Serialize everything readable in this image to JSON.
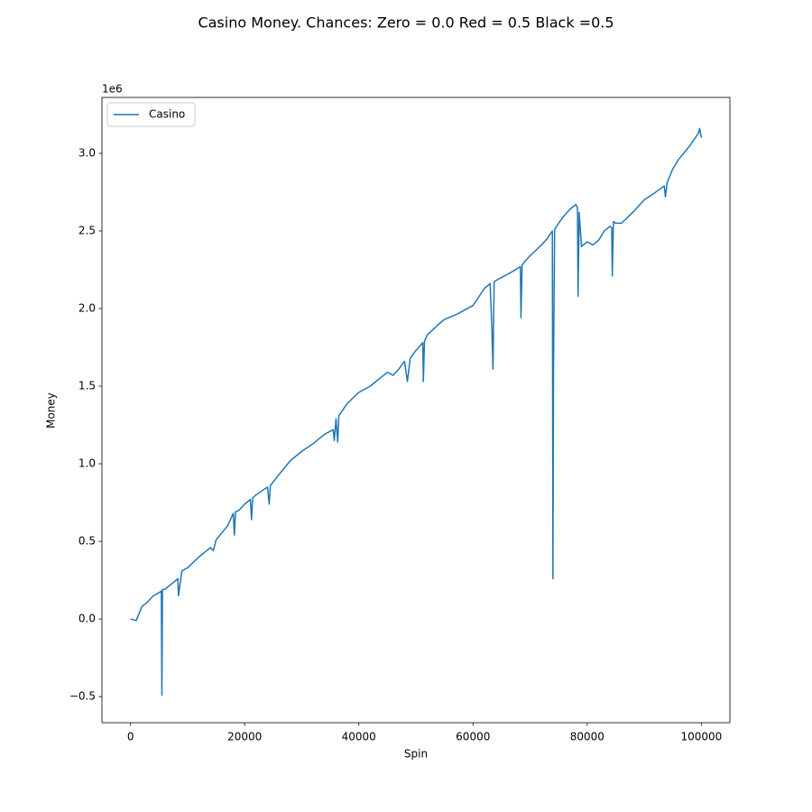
{
  "chart_data": {
    "type": "line",
    "title": "Casino Money. Chances: Zero = 0.0  Red = 0.5  Black =0.5",
    "x_label": "Spin",
    "y_label": "Money",
    "y_offset_label": "1e6",
    "x": [
      0,
      1000,
      2000,
      3000,
      4000,
      5000,
      5400,
      5500,
      5600,
      6000,
      7000,
      8000,
      8300,
      8400,
      9000,
      10000,
      12000,
      14000,
      14500,
      15000,
      17000,
      18000,
      18200,
      18400,
      19000,
      20000,
      21000,
      21200,
      21400,
      22000,
      24000,
      24300,
      24500,
      26000,
      28000,
      30000,
      32000,
      34000,
      35500,
      35700,
      36000,
      36300,
      36500,
      38000,
      40000,
      42000,
      44000,
      45000,
      46000,
      47000,
      48000,
      48500,
      49000,
      50000,
      51200,
      51300,
      51500,
      52000,
      54000,
      55000,
      57000,
      58000,
      60000,
      62000,
      63000,
      63300,
      63500,
      63700,
      64000,
      65000,
      66000,
      67000,
      68300,
      68400,
      68600,
      69000,
      70000,
      72000,
      73000,
      73900,
      74000,
      74100,
      74300,
      75000,
      76000,
      77000,
      78000,
      78300,
      78400,
      78600,
      79000,
      80000,
      81000,
      82000,
      83000,
      84000,
      84300,
      84400,
      84600,
      85000,
      86000,
      88000,
      90000,
      92000,
      93500,
      93700,
      94000,
      95000,
      96000,
      98000,
      99500,
      99700,
      100000
    ],
    "series": [
      {
        "name": "Casino",
        "color": "#1f77b4",
        "values": [
          0,
          -10000,
          80000,
          110000,
          150000,
          170000,
          180000,
          -490000,
          190000,
          190000,
          220000,
          250000,
          260000,
          150000,
          310000,
          330000,
          400000,
          460000,
          440000,
          510000,
          600000,
          680000,
          540000,
          690000,
          700000,
          740000,
          770000,
          640000,
          780000,
          800000,
          850000,
          740000,
          860000,
          930000,
          1020000,
          1080000,
          1130000,
          1190000,
          1220000,
          1150000,
          1290000,
          1140000,
          1310000,
          1390000,
          1460000,
          1500000,
          1560000,
          1590000,
          1570000,
          1610000,
          1660000,
          1530000,
          1680000,
          1730000,
          1780000,
          1530000,
          1790000,
          1830000,
          1900000,
          1930000,
          1960000,
          1980000,
          2020000,
          2130000,
          2160000,
          1880000,
          1610000,
          2170000,
          2180000,
          2200000,
          2220000,
          2240000,
          2270000,
          1940000,
          2280000,
          2300000,
          2340000,
          2410000,
          2450000,
          2500000,
          260000,
          1600000,
          2510000,
          2550000,
          2600000,
          2640000,
          2670000,
          2650000,
          2080000,
          2620000,
          2400000,
          2430000,
          2410000,
          2440000,
          2500000,
          2530000,
          2520000,
          2210000,
          2560000,
          2550000,
          2550000,
          2620000,
          2700000,
          2750000,
          2790000,
          2720000,
          2810000,
          2900000,
          2960000,
          3050000,
          3130000,
          3160000,
          3100000
        ]
      }
    ],
    "xlim": [
      -5000,
      105000
    ],
    "ylim": [
      -668000,
      3360000
    ],
    "xticks": [
      0,
      20000,
      40000,
      60000,
      80000,
      100000
    ],
    "yticks": [
      {
        "value": -500000,
        "label": "−0.5"
      },
      {
        "value": 0,
        "label": "0.0"
      },
      {
        "value": 500000,
        "label": "0.5"
      },
      {
        "value": 1000000,
        "label": "1.0"
      },
      {
        "value": 1500000,
        "label": "1.5"
      },
      {
        "value": 2000000,
        "label": "2.0"
      },
      {
        "value": 2500000,
        "label": "2.5"
      },
      {
        "value": 3000000,
        "label": "3.0"
      }
    ],
    "legend": "upper left",
    "grid": false
  }
}
